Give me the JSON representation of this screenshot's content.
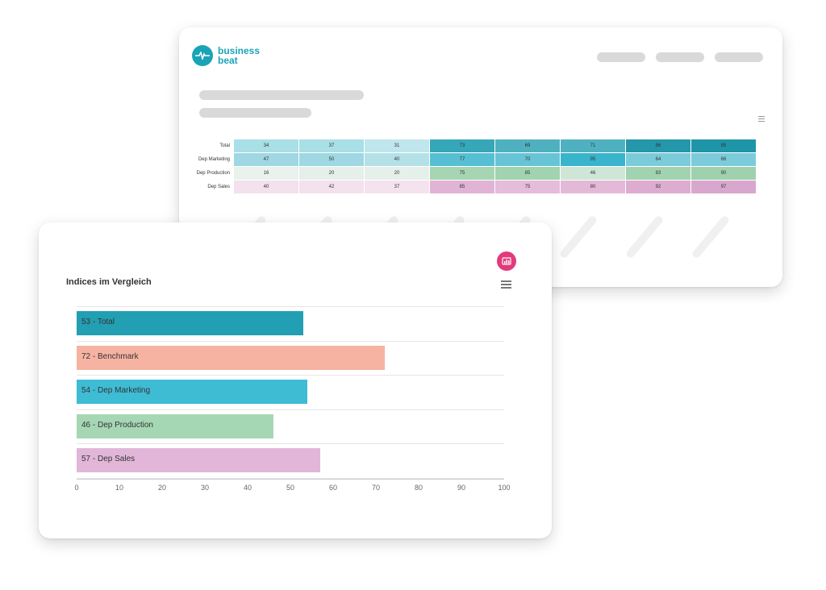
{
  "app": {
    "logo_line1": "business",
    "logo_line2": "beat"
  },
  "heatmap": {
    "rows": [
      {
        "label": "Total",
        "values": [
          34,
          37,
          31,
          73,
          69,
          71,
          86,
          85
        ],
        "colors": [
          "#a9dfe6",
          "#a9dfe6",
          "#bfe6ec",
          "#36a7b8",
          "#4fb1c0",
          "#4fb1c0",
          "#2597aa",
          "#1f95a8"
        ]
      },
      {
        "label": "Dep Marketing",
        "values": [
          47,
          50,
          40,
          77,
          70,
          95,
          64,
          66
        ],
        "colors": [
          "#9fd7e2",
          "#9fd7e2",
          "#b4e0e8",
          "#57bfd3",
          "#66c4d6",
          "#38b4cc",
          "#7ccbdb",
          "#7ccbdb"
        ]
      },
      {
        "label": "Dep Production",
        "values": [
          16,
          20,
          20,
          75,
          85,
          46,
          83,
          90
        ],
        "colors": [
          "#e9f2ec",
          "#e6f0ea",
          "#e6f0ea",
          "#a6d5b3",
          "#a2d3b0",
          "#cfe6d6",
          "#a2d3b0",
          "#9fd1ae"
        ]
      },
      {
        "label": "Dep Sales",
        "values": [
          40,
          42,
          37,
          85,
          75,
          80,
          92,
          97
        ],
        "colors": [
          "#f3e1ee",
          "#f3e1ee",
          "#f4e3ef",
          "#e1b4d5",
          "#e5bcd9",
          "#e3b9d7",
          "#ddacd0",
          "#d9a7cd"
        ]
      }
    ]
  },
  "front": {
    "title": "Indices im Vergleich"
  },
  "chart_data": {
    "type": "bar",
    "orientation": "horizontal",
    "title": "Indices im Vergleich",
    "categories": [
      "53 - Total",
      "72 - Benchmark",
      "54 - Dep Marketing",
      "46 - Dep Production",
      "57 - Dep Sales"
    ],
    "values": [
      53,
      72,
      54,
      46,
      57
    ],
    "colors": [
      "#229fb2",
      "#f6b3a2",
      "#3ebcd4",
      "#a6d7b4",
      "#e2b6d8"
    ],
    "xlim": [
      0,
      100
    ],
    "xticks": [
      "0",
      "10",
      "20",
      "30",
      "40",
      "50",
      "60",
      "70",
      "80",
      "90",
      "100"
    ],
    "grid": true
  }
}
